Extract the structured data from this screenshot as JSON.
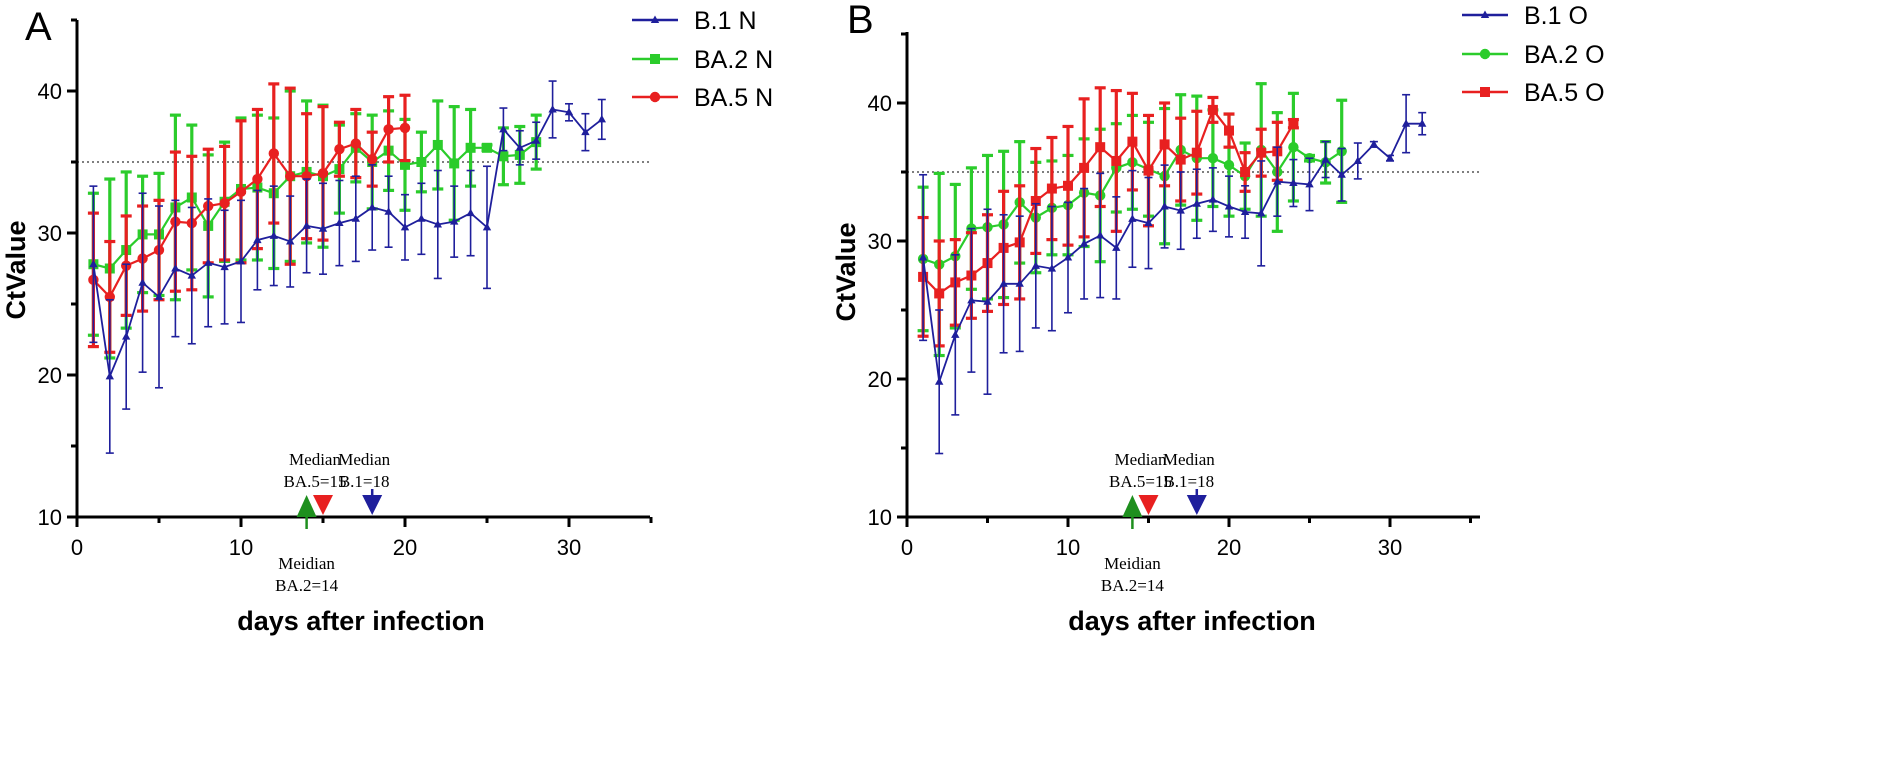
{
  "chart_data": [
    {
      "type": "line",
      "panel": "A",
      "xlabel": "days after infection",
      "ylabel": "CtValue",
      "xlim": [
        0,
        35
      ],
      "ylim": [
        10,
        45
      ],
      "xticks": [
        0,
        10,
        20,
        30
      ],
      "yticks": [
        10,
        20,
        30,
        40
      ],
      "reference_line": 35,
      "legend": "top-right",
      "series": [
        {
          "name": "B.1 N",
          "color": "#1f1f9c",
          "marker": "triangle",
          "x": [
            1,
            2,
            3,
            4,
            5,
            6,
            7,
            8,
            9,
            10,
            11,
            12,
            13,
            14,
            15,
            16,
            17,
            18,
            19,
            20,
            21,
            22,
            23,
            24,
            25,
            26,
            27,
            28,
            29,
            30,
            31,
            32
          ],
          "y": [
            27.8,
            19.9,
            22.7,
            26.5,
            25.5,
            27.5,
            27.0,
            27.9,
            27.6,
            28.0,
            29.5,
            29.8,
            29.4,
            30.5,
            30.3,
            30.7,
            31.0,
            31.8,
            31.5,
            30.4,
            31.0,
            30.6,
            30.8,
            31.4,
            30.4,
            37.3,
            36.0,
            36.5,
            38.7,
            38.5,
            37.1,
            38.0
          ],
          "err": [
            5.5,
            5.4,
            5.1,
            6.3,
            6.4,
            4.8,
            4.8,
            4.5,
            4.0,
            4.3,
            3.5,
            3.5,
            3.2,
            3.3,
            3.2,
            3.0,
            3.0,
            3.0,
            2.5,
            2.3,
            2.5,
            3.8,
            2.5,
            3.0,
            4.3,
            1.5,
            1.2,
            1.3,
            2.0,
            0.6,
            1.3,
            1.4
          ]
        },
        {
          "name": "BA.2 N",
          "color": "#2bcc2b",
          "marker": "square",
          "x": [
            1,
            2,
            3,
            4,
            5,
            6,
            7,
            8,
            9,
            10,
            11,
            12,
            13,
            14,
            15,
            16,
            17,
            18,
            19,
            20,
            21,
            22,
            23,
            24,
            25,
            26,
            27,
            28
          ],
          "y": [
            27.8,
            27.5,
            28.8,
            29.9,
            29.9,
            31.8,
            32.5,
            30.5,
            32.2,
            33.1,
            33.2,
            32.8,
            34.0,
            34.3,
            34.0,
            34.5,
            36.0,
            35.0,
            35.8,
            34.8,
            35.0,
            36.2,
            34.9,
            36.0,
            36.0,
            35.4,
            35.5,
            36.4
          ],
          "err": [
            5.0,
            6.3,
            5.5,
            4.1,
            4.3,
            6.5,
            5.1,
            5.0,
            4.2,
            5.0,
            5.1,
            5.3,
            6.0,
            5.0,
            5.0,
            3.1,
            2.4,
            3.3,
            2.8,
            3.2,
            2.1,
            3.1,
            4.0,
            2.7,
            0.2,
            2.0,
            2.0,
            1.9
          ]
        },
        {
          "name": "BA.5 N",
          "color": "#e82020",
          "marker": "circle",
          "x": [
            1,
            2,
            3,
            4,
            5,
            6,
            7,
            8,
            9,
            10,
            11,
            12,
            13,
            14,
            15,
            16,
            17,
            18,
            19,
            20
          ],
          "y": [
            26.7,
            25.5,
            27.7,
            28.2,
            28.8,
            30.8,
            30.7,
            31.9,
            32.1,
            32.9,
            33.8,
            35.6,
            34.0,
            34.0,
            34.2,
            35.9,
            36.3,
            35.2,
            37.3,
            37.4
          ],
          "err": [
            4.7,
            3.9,
            3.5,
            3.7,
            3.5,
            4.9,
            4.7,
            4.0,
            4.0,
            5.0,
            4.9,
            4.9,
            6.2,
            4.4,
            4.7,
            1.9,
            2.4,
            1.9,
            2.3,
            2.3
          ]
        }
      ],
      "annotations": [
        {
          "line1": "Median",
          "line2": "BA.5=15",
          "day": 15,
          "color": "#e82020",
          "direction": "down"
        },
        {
          "line1": "Median",
          "line2": "B.1=18",
          "day": 18,
          "color": "#1f1f9c",
          "direction": "down"
        },
        {
          "line1": "Meidian",
          "line2": "BA.2=14",
          "day": 14,
          "color": "#1e8f1e",
          "direction": "up"
        }
      ]
    },
    {
      "type": "line",
      "panel": "B",
      "xlabel": "days after infection",
      "ylabel": "CtValue",
      "xlim": [
        0,
        35
      ],
      "ylim": [
        10,
        45
      ],
      "xticks": [
        0,
        10,
        20,
        30
      ],
      "yticks": [
        10,
        20,
        30,
        40
      ],
      "reference_line": 35,
      "legend": "top-right",
      "series": [
        {
          "name": "B.1 O",
          "color": "#1f1f9c",
          "marker": "triangle",
          "x": [
            1,
            2,
            3,
            4,
            5,
            6,
            7,
            8,
            9,
            10,
            11,
            12,
            13,
            14,
            15,
            16,
            17,
            18,
            19,
            20,
            21,
            22,
            23,
            24,
            25,
            26,
            27,
            28,
            29,
            30,
            31,
            32
          ],
          "y": [
            28.8,
            19.8,
            23.2,
            25.7,
            25.6,
            26.9,
            26.9,
            28.2,
            28.0,
            28.8,
            29.8,
            30.4,
            29.5,
            31.6,
            31.3,
            32.5,
            32.2,
            32.7,
            33.0,
            32.5,
            32.1,
            32.0,
            34.3,
            34.2,
            34.1,
            35.9,
            34.8,
            35.8,
            37.0,
            36.0,
            38.5,
            38.5
          ],
          "err": [
            6.0,
            5.2,
            5.8,
            5.2,
            6.7,
            5.0,
            4.9,
            4.5,
            4.5,
            4.0,
            4.0,
            4.5,
            3.7,
            3.5,
            3.3,
            3.0,
            2.8,
            2.5,
            2.3,
            2.2,
            1.9,
            3.8,
            2.5,
            1.7,
            1.9,
            1.3,
            1.9,
            1.3,
            0.2,
            0.2,
            2.1,
            0.8
          ]
        },
        {
          "name": "BA.2 O",
          "color": "#2bcc2b",
          "marker": "circle",
          "x": [
            1,
            2,
            3,
            4,
            5,
            6,
            7,
            8,
            9,
            10,
            11,
            12,
            13,
            14,
            15,
            16,
            17,
            18,
            19,
            20,
            21,
            22,
            23,
            24,
            25,
            26,
            27
          ],
          "y": [
            28.7,
            28.3,
            28.9,
            30.9,
            31.0,
            31.2,
            32.8,
            31.7,
            32.4,
            32.6,
            33.5,
            33.3,
            35.3,
            35.7,
            35.2,
            34.7,
            36.6,
            36.0,
            36.0,
            35.5,
            34.7,
            36.6,
            35.0,
            36.8,
            36.0,
            35.7,
            36.5
          ],
          "err": [
            5.2,
            6.6,
            5.2,
            4.4,
            5.2,
            5.3,
            4.4,
            4.0,
            3.4,
            3.6,
            3.9,
            4.8,
            3.2,
            3.4,
            3.4,
            4.9,
            4.0,
            4.5,
            3.5,
            3.7,
            2.4,
            4.8,
            4.3,
            3.9,
            0.2,
            1.5,
            3.7
          ]
        },
        {
          "name": "BA.5 O",
          "color": "#e82020",
          "marker": "square",
          "x": [
            1,
            2,
            3,
            4,
            5,
            6,
            7,
            8,
            9,
            10,
            11,
            12,
            13,
            14,
            15,
            16,
            17,
            18,
            19,
            20,
            21,
            22,
            23,
            24
          ],
          "y": [
            27.4,
            26.2,
            27.0,
            27.5,
            28.4,
            29.5,
            29.9,
            32.9,
            33.8,
            34.0,
            35.3,
            36.8,
            35.8,
            37.2,
            35.1,
            37.0,
            35.9,
            36.4,
            39.5,
            38.0,
            35.0,
            36.4,
            36.5,
            38.5
          ],
          "err": [
            4.3,
            3.8,
            3.1,
            3.1,
            3.5,
            4.1,
            4.1,
            3.8,
            3.7,
            4.3,
            5.0,
            4.3,
            5.1,
            3.5,
            4.0,
            3.0,
            3.0,
            3.0,
            0.9,
            1.2,
            1.4,
            1.7,
            2.1,
            0.3
          ]
        }
      ],
      "annotations": [
        {
          "line1": "Median",
          "line2": "BA.5=15",
          "day": 15,
          "color": "#e82020",
          "direction": "down"
        },
        {
          "line1": "Median",
          "line2": "B.1=18",
          "day": 18,
          "color": "#1f1f9c",
          "direction": "down"
        },
        {
          "line1": "Meidian",
          "line2": "BA.2=14",
          "day": 14,
          "color": "#1e8f1e",
          "direction": "up"
        }
      ]
    }
  ]
}
